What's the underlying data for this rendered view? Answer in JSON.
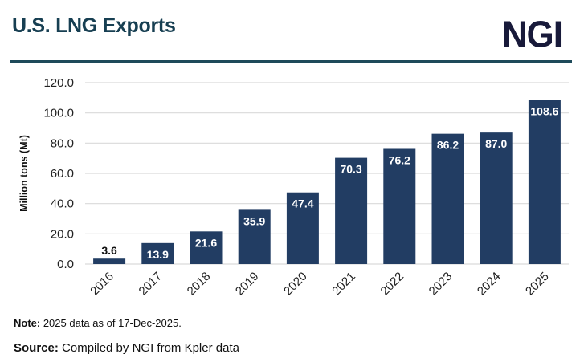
{
  "header": {
    "title": "U.S. LNG Exports",
    "logo": "NGI"
  },
  "footer": {
    "note_label": "Note:",
    "note_text": " 2025 data as of 17-Dec-2025.",
    "source_label": "Source:",
    "source_text": " Compiled by NGI from Kpler data"
  },
  "colors": {
    "bar": "#223d63",
    "title": "#173f52",
    "rule": "#1e4a5a",
    "grid": "#d9d9d9"
  },
  "chart_data": {
    "type": "bar",
    "title": "U.S. LNG Exports",
    "xlabel": "",
    "ylabel": "Million tons (Mt)",
    "categories": [
      "2016",
      "2017",
      "2018",
      "2019",
      "2020",
      "2021",
      "2022",
      "2023",
      "2024",
      "2025"
    ],
    "values": [
      3.6,
      13.9,
      21.6,
      35.9,
      47.4,
      70.3,
      76.2,
      86.2,
      87.0,
      108.6
    ],
    "value_labels": [
      "3.6",
      "13.9",
      "21.6",
      "35.9",
      "47.4",
      "70.3",
      "76.2",
      "86.2",
      "87.0",
      "108.6"
    ],
    "ylim": [
      0,
      120
    ],
    "yticks": [
      0,
      20,
      40,
      60,
      80,
      100,
      120
    ],
    "ytick_labels": [
      "0.0",
      "20.0",
      "40.0",
      "60.0",
      "80.0",
      "100.0",
      "120.0"
    ],
    "grid": true,
    "legend": "none"
  }
}
